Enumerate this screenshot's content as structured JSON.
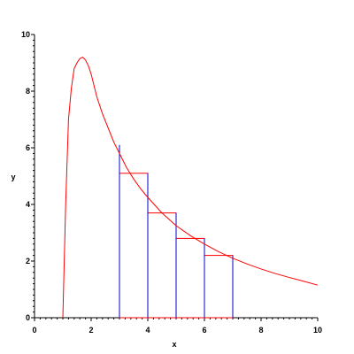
{
  "chart_data": {
    "type": "line",
    "xlabel": "x",
    "ylabel": "y",
    "xlim": [
      0,
      10
    ],
    "ylim": [
      0,
      10
    ],
    "x_ticks": [
      "0",
      "2",
      "4",
      "6",
      "8",
      "10"
    ],
    "y_ticks": [
      "0",
      "2",
      "4",
      "6",
      "8",
      "10"
    ],
    "grid": false,
    "curve": {
      "color": "#ff0000",
      "x": [
        1.0,
        1.1,
        1.2,
        1.3,
        1.4,
        1.5,
        1.6,
        1.7,
        1.8,
        1.9,
        2.0,
        2.2,
        2.4,
        2.6,
        2.8,
        3.0,
        3.25,
        3.5,
        3.75,
        4.0,
        4.5,
        5.0,
        5.5,
        6.0,
        6.5,
        7.0,
        7.5,
        8.0,
        8.5,
        9.0,
        9.5,
        10.0
      ],
      "y": [
        0.0,
        4.0,
        7.0,
        8.1,
        8.8,
        9.0,
        9.15,
        9.2,
        9.1,
        8.9,
        8.6,
        7.8,
        7.2,
        6.7,
        6.2,
        5.8,
        5.3,
        4.9,
        4.55,
        4.25,
        3.7,
        3.25,
        2.9,
        2.6,
        2.33,
        2.1,
        1.9,
        1.72,
        1.56,
        1.42,
        1.29,
        1.15
      ]
    },
    "rectangles": {
      "color": "#ff0000",
      "edge_color": "#0000cc",
      "x_left": [
        3,
        4,
        5,
        6
      ],
      "width": 1,
      "heights": [
        5.1,
        3.7,
        2.8,
        2.2
      ]
    },
    "verticals": {
      "color": "#0000cc",
      "x": [
        3,
        4,
        5,
        6,
        7
      ],
      "y_top": [
        6.1,
        5.1,
        3.7,
        2.8,
        2.2
      ]
    }
  }
}
